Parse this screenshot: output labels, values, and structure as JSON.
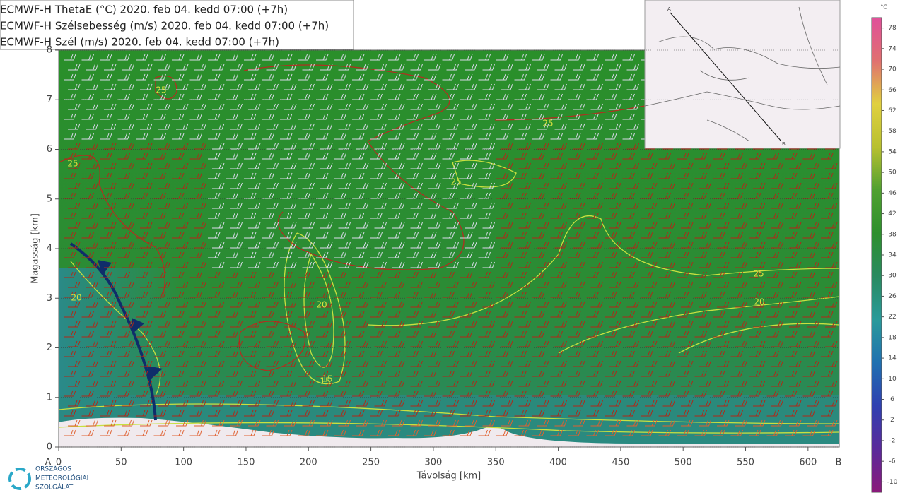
{
  "chart_data": {
    "type": "cross-section",
    "legend_lines": [
      "ECMWF-H ThetaE (°C) 2020. feb 04. kedd 07:00 (+7h)",
      "ECMWF-H Szélsebesség (m/s) 2020. feb 04. kedd 07:00 (+7h)",
      "ECMWF-H Szél (m/s) 2020. feb 04. kedd 07:00 (+7h)"
    ],
    "x_label": "Távolság [km]",
    "y_label": "Magasság [km]",
    "start_label": "A",
    "end_label": "B",
    "xlim": [
      0,
      625
    ],
    "xticks": [
      0,
      50,
      100,
      150,
      200,
      250,
      300,
      350,
      400,
      450,
      500,
      550,
      600
    ],
    "ylim": [
      0,
      8
    ],
    "yticks": [
      0,
      1,
      2,
      3,
      4,
      5,
      6,
      7,
      8
    ],
    "contour_labels": [
      25,
      25,
      20,
      25,
      15,
      20,
      25,
      25,
      20,
      15
    ],
    "colorbar": {
      "unit": "°C",
      "lim": [
        -12,
        80
      ],
      "ticks": [
        -10,
        -6,
        -2,
        2,
        6,
        10,
        14,
        18,
        22,
        26,
        30,
        34,
        38,
        42,
        46,
        50,
        54,
        58,
        62,
        66,
        70,
        74,
        78
      ],
      "colors": [
        "#8a1a7a",
        "#5a2a9a",
        "#3040b0",
        "#2070b0",
        "#2a9a9a",
        "#2a8a60",
        "#2e8f2e",
        "#50a030",
        "#b8c030",
        "#e0d040",
        "#e07070",
        "#e0509a"
      ]
    },
    "logo": [
      "ORSZÁGOS",
      "METEOROLÓGIAI",
      "SZOLGÁLAT"
    ]
  }
}
